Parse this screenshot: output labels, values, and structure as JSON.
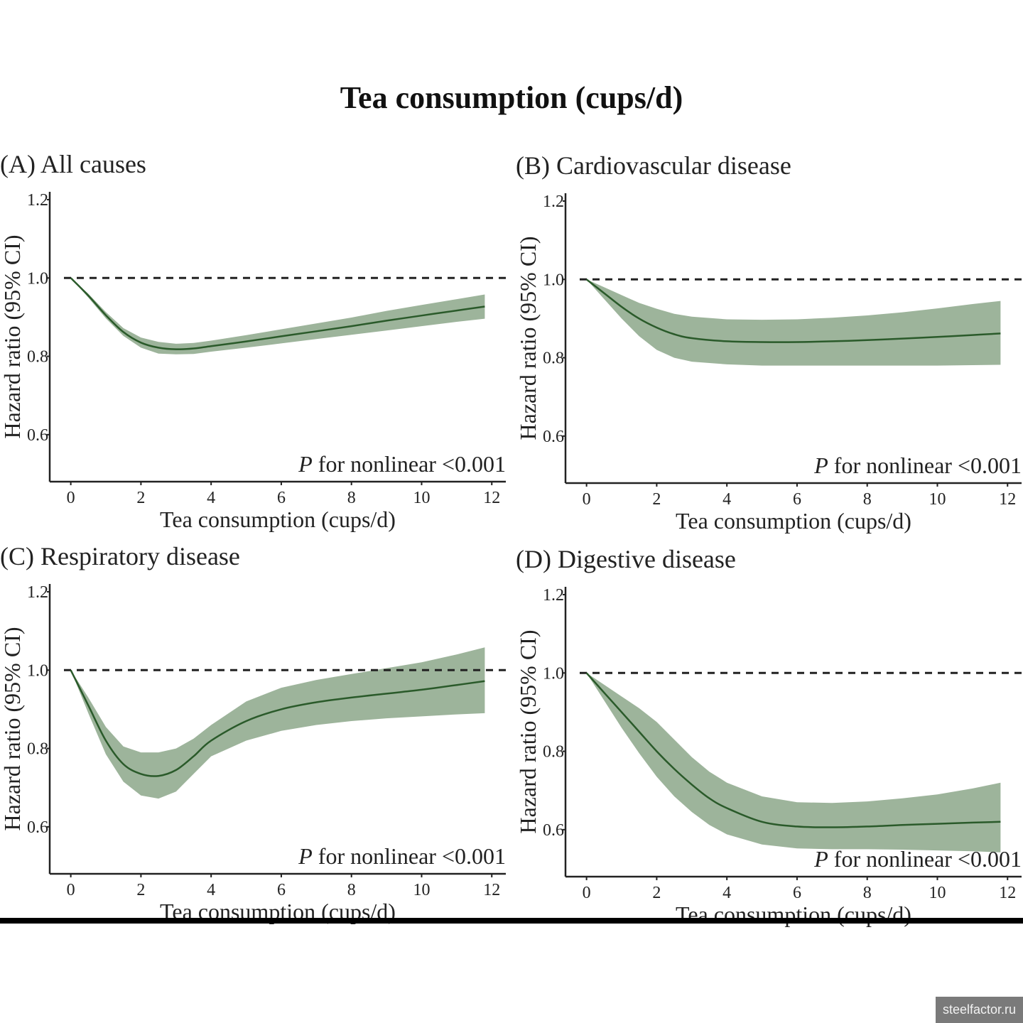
{
  "title": "Tea consumption (cups/d)",
  "watermark": "steelfactor.ru",
  "colors": {
    "band": "#9db49b",
    "line": "#2a5a2a",
    "reference": "#222222",
    "axis": "#222222"
  },
  "chart_data": [
    {
      "type": "line",
      "title": "(A) All causes",
      "xlabel": "Tea consumption (cups/d)",
      "ylabel": "Hazard ratio (95% CI)",
      "xlim": [
        -0.6,
        12.4
      ],
      "ylim": [
        0.48,
        1.22
      ],
      "x_ticks": [
        "0",
        "2",
        "4",
        "6",
        "8",
        "10",
        "12"
      ],
      "y_ticks": [
        "1.2",
        "1.0",
        "0.8",
        "0.6"
      ],
      "reference_line": 1.0,
      "annotation": "P for nonlinear <0.001",
      "series": [
        {
          "x": [
            0,
            0.5,
            1,
            1.5,
            2,
            2.5,
            3,
            3.5,
            4,
            5,
            6,
            7,
            8,
            9,
            10,
            11,
            11.8
          ],
          "y": [
            1.0,
            0.955,
            0.905,
            0.862,
            0.835,
            0.822,
            0.818,
            0.82,
            0.826,
            0.838,
            0.851,
            0.864,
            0.877,
            0.891,
            0.904,
            0.917,
            0.927
          ],
          "lower": [
            1.0,
            0.95,
            0.897,
            0.852,
            0.822,
            0.807,
            0.805,
            0.806,
            0.812,
            0.822,
            0.833,
            0.844,
            0.855,
            0.866,
            0.877,
            0.888,
            0.896
          ],
          "upper": [
            1.0,
            0.96,
            0.913,
            0.872,
            0.848,
            0.837,
            0.832,
            0.834,
            0.84,
            0.854,
            0.869,
            0.884,
            0.899,
            0.916,
            0.931,
            0.946,
            0.958
          ]
        }
      ]
    },
    {
      "type": "line",
      "title": "(B) Cardiovascular disease",
      "xlabel": "Tea consumption (cups/d)",
      "ylabel": "Hazard ratio (95% CI)",
      "xlim": [
        -0.6,
        12.4
      ],
      "ylim": [
        0.48,
        1.22
      ],
      "x_ticks": [
        "0",
        "2",
        "4",
        "6",
        "8",
        "10",
        "12"
      ],
      "y_ticks": [
        "1.2",
        "1.0",
        "0.8",
        "0.6"
      ],
      "reference_line": 1.0,
      "annotation": "P for nonlinear <0.001",
      "series": [
        {
          "x": [
            0,
            0.5,
            1,
            1.5,
            2,
            2.5,
            3,
            4,
            5,
            6,
            7,
            8,
            9,
            10,
            11,
            11.8
          ],
          "y": [
            1.0,
            0.965,
            0.93,
            0.9,
            0.877,
            0.86,
            0.85,
            0.842,
            0.84,
            0.84,
            0.842,
            0.845,
            0.849,
            0.853,
            0.858,
            0.862
          ],
          "lower": [
            1.0,
            0.95,
            0.9,
            0.855,
            0.82,
            0.8,
            0.79,
            0.783,
            0.78,
            0.78,
            0.78,
            0.78,
            0.78,
            0.78,
            0.781,
            0.782
          ],
          "upper": [
            1.0,
            0.98,
            0.96,
            0.94,
            0.925,
            0.912,
            0.905,
            0.898,
            0.897,
            0.898,
            0.902,
            0.908,
            0.916,
            0.926,
            0.937,
            0.945
          ]
        }
      ]
    },
    {
      "type": "line",
      "title": "(C) Respiratory disease",
      "xlabel": "Tea consumption (cups/d)",
      "ylabel": "Hazard ratio (95% CI)",
      "xlim": [
        -0.6,
        12.4
      ],
      "ylim": [
        0.48,
        1.22
      ],
      "x_ticks": [
        "0",
        "2",
        "4",
        "6",
        "8",
        "10",
        "12"
      ],
      "y_ticks": [
        "1.2",
        "1.0",
        "0.8",
        "0.6"
      ],
      "reference_line": 1.0,
      "annotation": "P for nonlinear <0.001",
      "series": [
        {
          "x": [
            0,
            0.5,
            1,
            1.5,
            2,
            2.5,
            3,
            3.5,
            4,
            5,
            6,
            7,
            8,
            9,
            10,
            11,
            11.8
          ],
          "y": [
            1.0,
            0.91,
            0.82,
            0.76,
            0.735,
            0.73,
            0.745,
            0.78,
            0.82,
            0.87,
            0.9,
            0.918,
            0.93,
            0.94,
            0.95,
            0.962,
            0.972
          ],
          "lower": [
            1.0,
            0.89,
            0.785,
            0.715,
            0.68,
            0.672,
            0.69,
            0.735,
            0.78,
            0.82,
            0.845,
            0.86,
            0.87,
            0.877,
            0.882,
            0.887,
            0.89
          ],
          "upper": [
            1.0,
            0.93,
            0.855,
            0.805,
            0.79,
            0.79,
            0.8,
            0.825,
            0.86,
            0.92,
            0.955,
            0.975,
            0.99,
            1.005,
            1.02,
            1.04,
            1.058
          ]
        }
      ]
    },
    {
      "type": "line",
      "title": "(D) Digestive disease",
      "xlabel": "Tea consumption (cups/d)",
      "ylabel": "Hazard ratio (95% CI)",
      "xlim": [
        -0.6,
        12.4
      ],
      "ylim": [
        0.48,
        1.22
      ],
      "x_ticks": [
        "0",
        "2",
        "4",
        "6",
        "8",
        "10",
        "12"
      ],
      "y_ticks": [
        "1.2",
        "1.0",
        "0.8",
        "0.6"
      ],
      "reference_line": 1.0,
      "annotation": "P for nonlinear <0.001",
      "series": [
        {
          "x": [
            0,
            0.5,
            1,
            1.5,
            2,
            2.5,
            3,
            3.5,
            4,
            5,
            6,
            7,
            8,
            9,
            10,
            11,
            11.8
          ],
          "y": [
            1.0,
            0.95,
            0.9,
            0.85,
            0.8,
            0.755,
            0.715,
            0.68,
            0.655,
            0.62,
            0.608,
            0.606,
            0.608,
            0.612,
            0.615,
            0.618,
            0.62
          ],
          "lower": [
            1.0,
            0.93,
            0.86,
            0.795,
            0.735,
            0.685,
            0.645,
            0.612,
            0.588,
            0.562,
            0.552,
            0.55,
            0.55,
            0.549,
            0.547,
            0.545,
            0.542
          ],
          "upper": [
            1.0,
            0.97,
            0.94,
            0.91,
            0.875,
            0.83,
            0.785,
            0.748,
            0.72,
            0.685,
            0.67,
            0.668,
            0.672,
            0.68,
            0.69,
            0.705,
            0.72
          ]
        }
      ]
    }
  ]
}
